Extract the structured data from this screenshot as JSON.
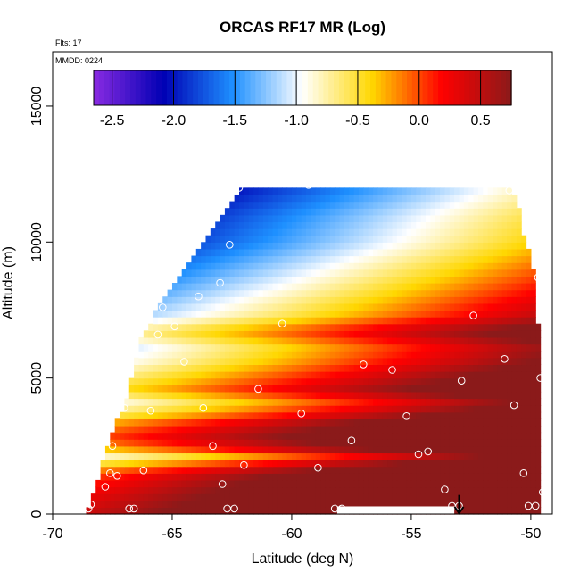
{
  "chart_data": {
    "type": "heatmap",
    "title": "ORCAS RF17 MR (Log)",
    "annotations": {
      "flights": "Flts: 17",
      "date": "MMDD: 0224"
    },
    "xlabel": "Latitude (deg N)",
    "ylabel": "Altitude (m)",
    "xlim": [
      -70,
      -49.1
    ],
    "ylim": [
      0,
      17000
    ],
    "x_ticks": [
      -70,
      -65,
      -60,
      -55,
      -50
    ],
    "x_tick_labels": [
      "-70",
      "-65",
      "-60",
      "-55",
      "-50"
    ],
    "y_ticks": [
      0,
      5000,
      10000,
      15000
    ],
    "y_tick_labels": [
      "0",
      "5000",
      "10000",
      "15000"
    ],
    "colorbar": {
      "range": [
        -2.65,
        0.75
      ],
      "ticks": [
        -2.5,
        -2.0,
        -1.5,
        -1.0,
        -0.5,
        0.0,
        0.5
      ],
      "tick_labels": [
        "-2.5",
        "-2.0",
        "-1.5",
        "-1.0",
        "-0.5",
        "0.0",
        "0.5"
      ],
      "colors": [
        "#8a2be2",
        "#0000b4",
        "#1e90ff",
        "#ffffff",
        "#ffd700",
        "#ff0000",
        "#8b1a1a"
      ]
    },
    "data_envelope": {
      "lat_min": -68.6,
      "lat_max": -49.6,
      "alt_top": 12000,
      "left_edge": [
        [
          0,
          -68.6
        ],
        [
          1000,
          -68.2
        ],
        [
          2500,
          -67.7
        ],
        [
          4500,
          -66.8
        ],
        [
          6500,
          -66.3
        ],
        [
          8500,
          -65.0
        ],
        [
          10000,
          -63.7
        ],
        [
          12000,
          -62.2
        ]
      ],
      "right_edge": [
        [
          0,
          -49.6
        ],
        [
          6000,
          -49.6
        ],
        [
          9000,
          -49.9
        ],
        [
          10300,
          -50.3
        ],
        [
          11200,
          -50.5
        ],
        [
          12000,
          -50.8
        ]
      ]
    },
    "profile_stops": [
      [
        0,
        0.45
      ],
      [
        600,
        0.28
      ],
      [
        1100,
        0.12
      ],
      [
        1500,
        -0.05
      ],
      [
        1800,
        -0.45
      ],
      [
        2100,
        -0.95
      ],
      [
        2400,
        -0.4
      ],
      [
        2800,
        -0.05
      ],
      [
        3300,
        -0.3
      ],
      [
        3700,
        -0.75
      ],
      [
        4100,
        -1.05
      ],
      [
        4600,
        -0.6
      ],
      [
        5100,
        -0.85
      ],
      [
        5600,
        -1.1
      ],
      [
        6100,
        -1.25
      ],
      [
        6700,
        -0.9
      ],
      [
        7300,
        -1.4
      ],
      [
        8200,
        -1.7
      ],
      [
        9000,
        -1.95
      ],
      [
        10000,
        -2.25
      ],
      [
        11000,
        -2.4
      ],
      [
        11800,
        -2.6
      ],
      [
        12000,
        -2.65
      ]
    ],
    "warming_rate_per_deg": 0.1,
    "obs_points": [
      {
        "lat": -68.5,
        "alt": 200
      },
      {
        "lat": -68.4,
        "alt": 350
      },
      {
        "lat": -67.8,
        "alt": 1000
      },
      {
        "lat": -67.6,
        "alt": 1500
      },
      {
        "lat": -67.5,
        "alt": 2500
      },
      {
        "lat": -67.3,
        "alt": 1400
      },
      {
        "lat": -67.0,
        "alt": 3900
      },
      {
        "lat": -66.8,
        "alt": 200
      },
      {
        "lat": -66.6,
        "alt": 200
      },
      {
        "lat": -66.2,
        "alt": 1600
      },
      {
        "lat": -65.9,
        "alt": 3800
      },
      {
        "lat": -65.6,
        "alt": 6600
      },
      {
        "lat": -65.4,
        "alt": 7600
      },
      {
        "lat": -64.9,
        "alt": 6900
      },
      {
        "lat": -64.5,
        "alt": 5600
      },
      {
        "lat": -63.9,
        "alt": 8000
      },
      {
        "lat": -63.7,
        "alt": 3900
      },
      {
        "lat": -63.3,
        "alt": 2500
      },
      {
        "lat": -63.0,
        "alt": 8500
      },
      {
        "lat": -62.9,
        "alt": 1100
      },
      {
        "lat": -62.7,
        "alt": 200
      },
      {
        "lat": -62.6,
        "alt": 9900
      },
      {
        "lat": -62.4,
        "alt": 200
      },
      {
        "lat": -62.2,
        "alt": 12000
      },
      {
        "lat": -62.0,
        "alt": 1800
      },
      {
        "lat": -61.4,
        "alt": 4600
      },
      {
        "lat": -60.4,
        "alt": 7000
      },
      {
        "lat": -59.6,
        "alt": 3700
      },
      {
        "lat": -59.3,
        "alt": 12100
      },
      {
        "lat": -58.9,
        "alt": 1700
      },
      {
        "lat": -58.2,
        "alt": 200
      },
      {
        "lat": -57.9,
        "alt": 200
      },
      {
        "lat": -57.5,
        "alt": 2700
      },
      {
        "lat": -57.0,
        "alt": 5500
      },
      {
        "lat": -56.5,
        "alt": 12200
      },
      {
        "lat": -55.8,
        "alt": 5300
      },
      {
        "lat": -55.2,
        "alt": 3600
      },
      {
        "lat": -54.7,
        "alt": 2200
      },
      {
        "lat": -54.3,
        "alt": 2300
      },
      {
        "lat": -53.6,
        "alt": 900
      },
      {
        "lat": -53.3,
        "alt": 300
      },
      {
        "lat": -53.0,
        "alt": 300
      },
      {
        "lat": -52.9,
        "alt": 4900
      },
      {
        "lat": -52.4,
        "alt": 7300
      },
      {
        "lat": -51.1,
        "alt": 5700
      },
      {
        "lat": -50.9,
        "alt": 11900
      },
      {
        "lat": -50.7,
        "alt": 4000
      },
      {
        "lat": -50.3,
        "alt": 1500
      },
      {
        "lat": -50.1,
        "alt": 300
      },
      {
        "lat": -49.8,
        "alt": 300
      },
      {
        "lat": -49.7,
        "alt": 8700
      },
      {
        "lat": -49.6,
        "alt": 5000
      },
      {
        "lat": -49.5,
        "alt": 800
      }
    ],
    "arrow_marker": {
      "lat": -53.0,
      "alt_top": 700
    }
  }
}
